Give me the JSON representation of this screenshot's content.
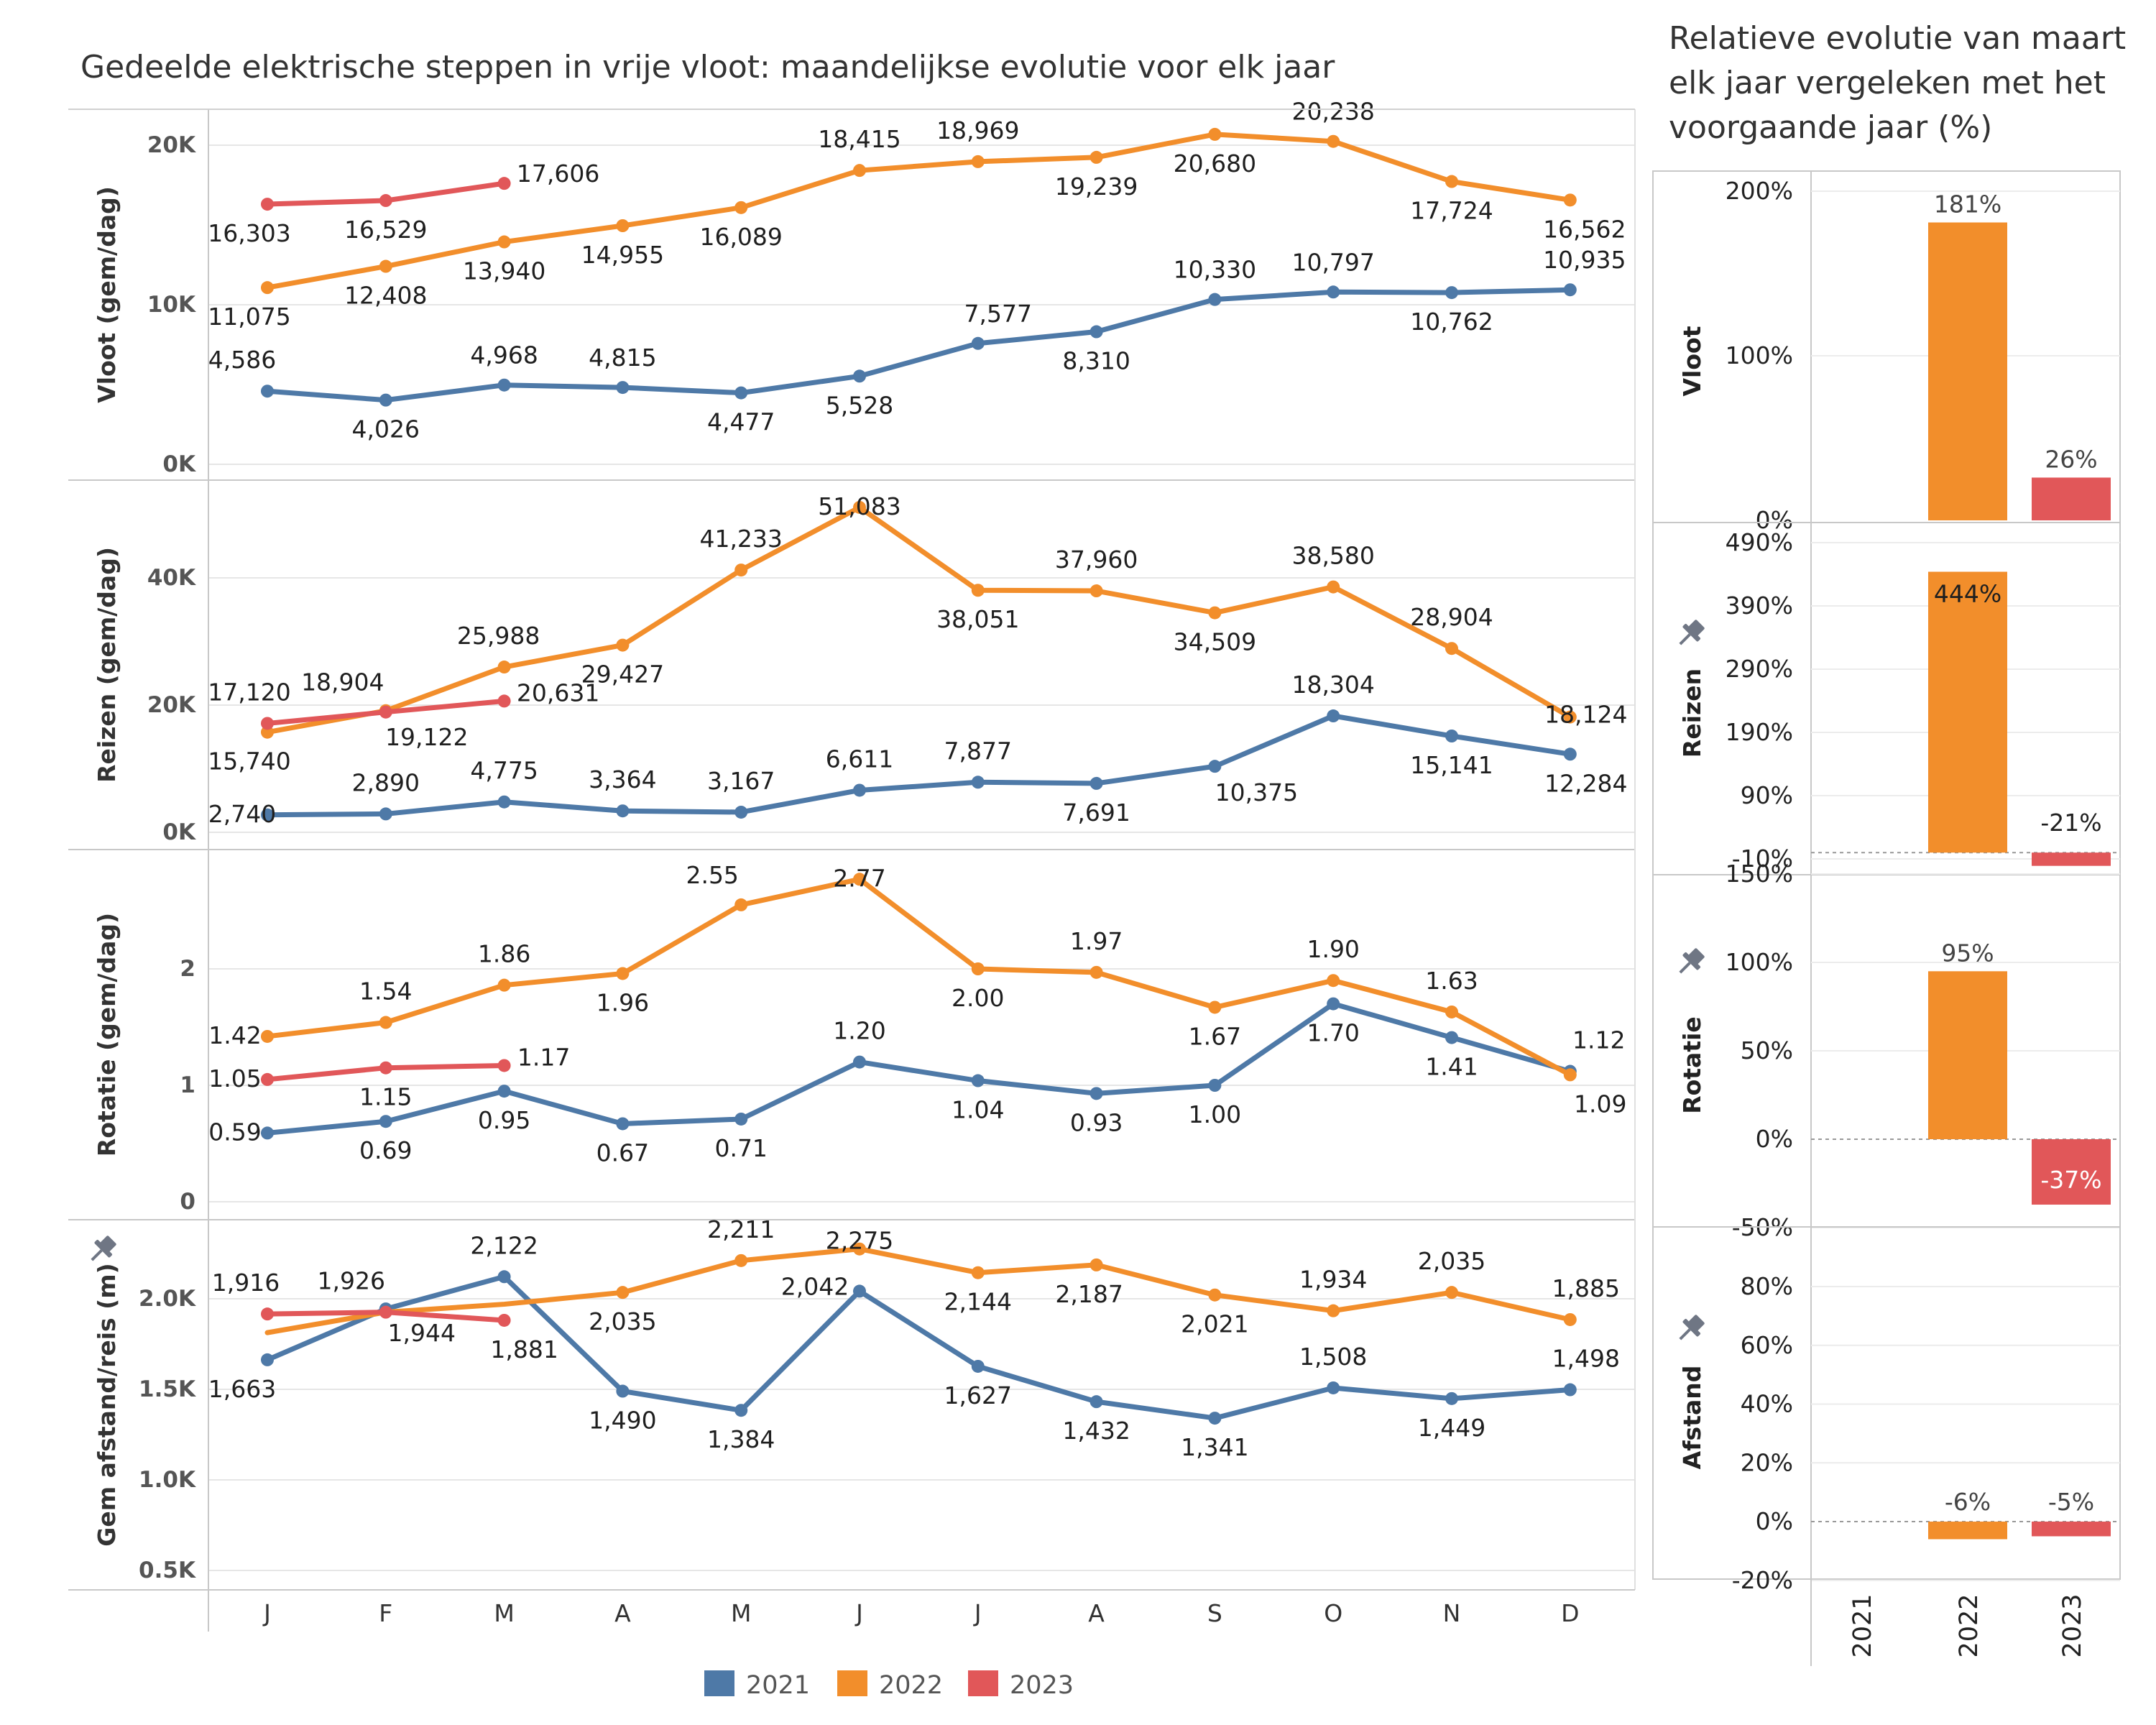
{
  "main_title": "Gedeelde elektrische steppen in vrije vloot: maandelijkse evolutie voor elk jaar",
  "side_title": [
    "Relatieve evolutie van maart",
    "elk jaar vergeleken met het",
    "voorgaande jaar (%)"
  ],
  "colors": {
    "2021": "#4e79a7",
    "2022": "#f28e2b",
    "2023": "#e15759"
  },
  "legend": [
    "2021",
    "2022",
    "2023"
  ],
  "chart_data": [
    {
      "type": "line",
      "title": "Gedeelde elektrische steppen in vrije vloot: maandelijkse evolutie voor elk jaar",
      "categories": [
        "J",
        "F",
        "M",
        "A",
        "M",
        "J",
        "J",
        "A",
        "S",
        "O",
        "N",
        "D"
      ],
      "legend_position": "bottom",
      "panels": [
        {
          "ylabel": "Vloot (gem/dag)",
          "ylim": [
            0,
            20000
          ],
          "yticks": [
            0,
            10000,
            20000
          ],
          "ytick_labels": [
            "0K",
            "10K",
            "20K"
          ],
          "pin_icon": false,
          "series": [
            {
              "name": "2021",
              "values": [
                4586,
                4026,
                4968,
                4815,
                4477,
                5528,
                7577,
                8310,
                10330,
                10797,
                10762,
                10935
              ],
              "labels": [
                "4,586",
                "4,026",
                "4,968",
                "4,815",
                "4,477",
                "5,528",
                "7,577",
                "8,310",
                "10,330",
                "10,797",
                "10,762",
                "10,935"
              ]
            },
            {
              "name": "2022",
              "values": [
                11075,
                12408,
                13940,
                14955,
                16089,
                18415,
                18969,
                19239,
                20680,
                20238,
                17724,
                16562
              ],
              "labels": [
                "11,075",
                "12,408",
                "13,940",
                "14,955",
                "16,089",
                "18,415",
                "18,969",
                "19,239",
                "20,680",
                "20,238",
                "17,724",
                "16,562"
              ]
            },
            {
              "name": "2023",
              "values": [
                16303,
                16529,
                17606
              ],
              "labels": [
                "16,303",
                "16,529",
                "17,606"
              ]
            }
          ]
        },
        {
          "ylabel": "Reizen (gem/dag)",
          "ylim": [
            0,
            50000
          ],
          "yticks": [
            0,
            20000,
            40000
          ],
          "ytick_labels": [
            "0K",
            "20K",
            "40K"
          ],
          "pin_icon": false,
          "series": [
            {
              "name": "2021",
              "values": [
                2740,
                2890,
                4775,
                3364,
                3167,
                6611,
                7877,
                7691,
                10375,
                18304,
                15141,
                12284
              ],
              "labels": [
                "2,740",
                "2,890",
                "4,775",
                "3,364",
                "3,167",
                "6,611",
                "7,877",
                "7,691",
                "10,375",
                "18,304",
                "15,141",
                "12,284"
              ]
            },
            {
              "name": "2022",
              "values": [
                15740,
                19122,
                25988,
                29427,
                41233,
                51083,
                38051,
                37960,
                34509,
                38580,
                28904,
                18124
              ],
              "labels": [
                "15,740",
                "19,122",
                "25,988",
                "29,427",
                "41,233",
                "51,083",
                "38,051",
                "37,960",
                "34,509",
                "38,580",
                "28,904",
                "18,124"
              ]
            },
            {
              "name": "2023",
              "values": [
                17120,
                18904,
                20631
              ],
              "labels": [
                "17,120",
                "18,904",
                "20,631"
              ]
            }
          ]
        },
        {
          "ylabel": "Rotatie (gem/dag)",
          "ylim": [
            0,
            2.8
          ],
          "yticks": [
            0,
            1,
            2
          ],
          "ytick_labels": [
            "0",
            "1",
            "2"
          ],
          "pin_icon": false,
          "series": [
            {
              "name": "2021",
              "values": [
                0.59,
                0.69,
                0.95,
                0.67,
                0.71,
                1.2,
                1.04,
                0.93,
                1.0,
                1.7,
                1.41,
                1.12
              ],
              "labels": [
                "0.59",
                "0.69",
                "0.95",
                "0.67",
                "0.71",
                "1.20",
                "1.04",
                "0.93",
                "1.00",
                "1.70",
                "1.41",
                "1.12"
              ]
            },
            {
              "name": "2022",
              "values": [
                1.42,
                1.54,
                1.86,
                1.96,
                2.55,
                2.77,
                2.0,
                1.97,
                1.67,
                1.9,
                1.63,
                1.09
              ],
              "labels": [
                "1.42",
                "1.54",
                "1.86",
                "1.96",
                "2.55",
                "2.77",
                "2.00",
                "1.97",
                "1.67",
                "1.90",
                "1.63",
                "1.09"
              ]
            },
            {
              "name": "2023",
              "values": [
                1.05,
                1.15,
                1.17
              ],
              "labels": [
                "1.05",
                "1.15",
                "1.17"
              ]
            }
          ]
        },
        {
          "ylabel": "Gem afstand/reis (m)",
          "ylim": [
            500,
            2300
          ],
          "yticks": [
            500,
            1000,
            1500,
            2000
          ],
          "ytick_labels": [
            "0.5K",
            "1.0K",
            "1.5K",
            "2.0K"
          ],
          "pin_icon": true,
          "series": [
            {
              "name": "2021",
              "values": [
                1663,
                1944,
                2122,
                1490,
                1384,
                2042,
                1627,
                1432,
                1341,
                1508,
                1449,
                1498
              ],
              "labels": [
                "1,663",
                "1,944",
                "2,122",
                "1,490",
                "1,384",
                "2,042",
                "1,627",
                "1,432",
                "1,341",
                "1,508",
                "1,449",
                "1,498"
              ]
            },
            {
              "name": "2022",
              "values": [
                1813,
                1926,
                1970,
                2035,
                2211,
                2275,
                2144,
                2187,
                2021,
                1934,
                2035,
                1885
              ],
              "labels": [
                "",
                "",
                "",
                "2,035",
                "2,211",
                "2,275",
                "2,144",
                "2,187",
                "2,021",
                "1,934",
                "2,035",
                "1,885"
              ]
            },
            {
              "name": "2023",
              "values": [
                1916,
                1926,
                1881
              ],
              "labels": [
                "1,916",
                "1,926",
                "1,881"
              ]
            }
          ]
        }
      ]
    },
    {
      "type": "bar",
      "title": "Relatieve evolutie van maart elk jaar vergeleken met het voorgaande jaar (%)",
      "categories": [
        "2021",
        "2022",
        "2023"
      ],
      "panels": [
        {
          "ylabel": "Vloot",
          "ylim": [
            -5,
            205
          ],
          "yticks": [
            0,
            100,
            200
          ],
          "ytick_labels": [
            "0%",
            "100%",
            "200%"
          ],
          "pin_icon": false,
          "zero_line": false,
          "values": [
            null,
            181,
            26
          ],
          "labels": [
            "",
            "181%",
            "26%"
          ]
        },
        {
          "ylabel": "Reizen",
          "ylim": [
            -15,
            505
          ],
          "yticks": [
            -10,
            90,
            190,
            290,
            390,
            490
          ],
          "ytick_labels": [
            "-10%",
            "90%",
            "190%",
            "290%",
            "390%",
            "490%"
          ],
          "pin_icon": true,
          "zero_line": true,
          "values": [
            null,
            444,
            -21
          ],
          "labels": [
            "",
            "444%",
            "-21%"
          ]
        },
        {
          "ylabel": "Rotatie",
          "ylim": [
            -55,
            155
          ],
          "yticks": [
            -50,
            0,
            50,
            100,
            150
          ],
          "ytick_labels": [
            "-50%",
            "0%",
            "50%",
            "100%",
            "150%"
          ],
          "pin_icon": true,
          "zero_line": true,
          "values": [
            null,
            95,
            -37
          ],
          "labels": [
            "",
            "95%",
            "-37%"
          ]
        },
        {
          "ylabel": "Afstand",
          "ylim": [
            -23,
            93
          ],
          "yticks": [
            -20,
            0,
            20,
            40,
            60,
            80
          ],
          "ytick_labels": [
            "-20%",
            "0%",
            "20%",
            "40%",
            "60%",
            "80%"
          ],
          "pin_icon": true,
          "zero_line": true,
          "values": [
            null,
            -6,
            -5
          ],
          "labels": [
            "",
            "-6%",
            "-5%"
          ]
        }
      ]
    }
  ]
}
